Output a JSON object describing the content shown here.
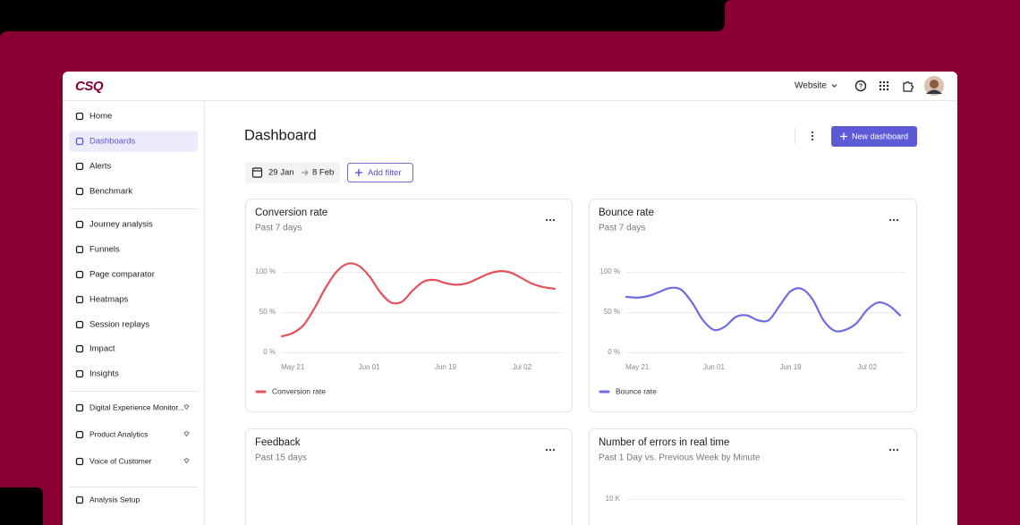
{
  "header": {
    "logo": "CSQ",
    "site": "Website"
  },
  "nav": {
    "groups": [
      [
        {
          "label": "Home"
        },
        {
          "label": "Dashboards",
          "active": true
        },
        {
          "label": "Alerts"
        },
        {
          "label": "Benchmark"
        }
      ],
      [
        {
          "label": "Journey analysis"
        },
        {
          "label": "Funnels"
        },
        {
          "label": "Page comparator"
        },
        {
          "label": "Heatmaps"
        },
        {
          "label": "Session replays"
        },
        {
          "label": "Impact"
        },
        {
          "label": "Insights"
        }
      ],
      [
        {
          "label": "Digital Experience Monitor...",
          "premium": true
        },
        {
          "label": "Product Analytics",
          "premium": true
        },
        {
          "label": "Voice of Customer",
          "premium": true
        }
      ],
      [
        {
          "label": "Analysis Setup"
        }
      ]
    ]
  },
  "page": {
    "title": "Dashboard",
    "new_button": "New dashboard",
    "date_from": "29 Jan",
    "date_to": "8 Feb",
    "add_filter": "Add filter"
  },
  "chart_data": [
    {
      "type": "line",
      "title": "Conversion rate",
      "subtitle": "Past 7 days",
      "categories": [
        null,
        "May 21",
        null,
        null,
        null,
        null,
        null,
        null,
        "Jun 01",
        null,
        null,
        null,
        null,
        null,
        null,
        "Jun 19",
        null,
        null,
        null,
        null,
        null,
        null,
        "Jul 02",
        null,
        null,
        null
      ],
      "series": [
        {
          "name": "Conversion rate",
          "color": "#e5505a",
          "values": [
            20,
            24,
            34,
            55,
            80,
            100,
            110,
            108,
            95,
            75,
            62,
            63,
            77,
            88,
            90,
            86,
            84,
            86,
            92,
            98,
            101,
            99,
            92,
            85,
            81,
            79
          ]
        }
      ],
      "ylim": [
        0,
        100
      ],
      "yticks": [
        {
          "value": 0,
          "label": "0 %"
        },
        {
          "value": 50,
          "label": "50 %"
        },
        {
          "value": 100,
          "label": "100 %"
        }
      ],
      "grid": true,
      "legend": "bottom-left"
    },
    {
      "type": "line",
      "title": "Bounce rate",
      "subtitle": "Past 7 days",
      "categories": [
        null,
        "May 21",
        null,
        null,
        null,
        null,
        null,
        null,
        "Jun 01",
        null,
        null,
        null,
        null,
        null,
        null,
        "Jun 19",
        null,
        null,
        null,
        null,
        null,
        null,
        "Jul 02",
        null,
        null,
        null
      ],
      "series": [
        {
          "name": "Bounce rate",
          "color": "#6f6be6",
          "values": [
            69,
            68,
            70,
            75,
            80,
            78,
            62,
            40,
            28,
            32,
            44,
            46,
            40,
            40,
            58,
            76,
            79,
            66,
            40,
            27,
            28,
            36,
            53,
            62,
            58,
            46
          ]
        }
      ],
      "ylim": [
        0,
        100
      ],
      "yticks": [
        {
          "value": 0,
          "label": "0 %"
        },
        {
          "value": 50,
          "label": "50 %"
        },
        {
          "value": 100,
          "label": "100 %"
        }
      ],
      "grid": true,
      "legend": "bottom-left"
    },
    {
      "title": "Feedback",
      "subtitle": "Past 15 days"
    },
    {
      "type": "line",
      "title": "Number of errors in real time",
      "subtitle": "Past 1 Day vs. Previous Week by Minute",
      "yticks": [
        {
          "value": 10000,
          "label": "10 K"
        }
      ],
      "grid": true
    }
  ]
}
